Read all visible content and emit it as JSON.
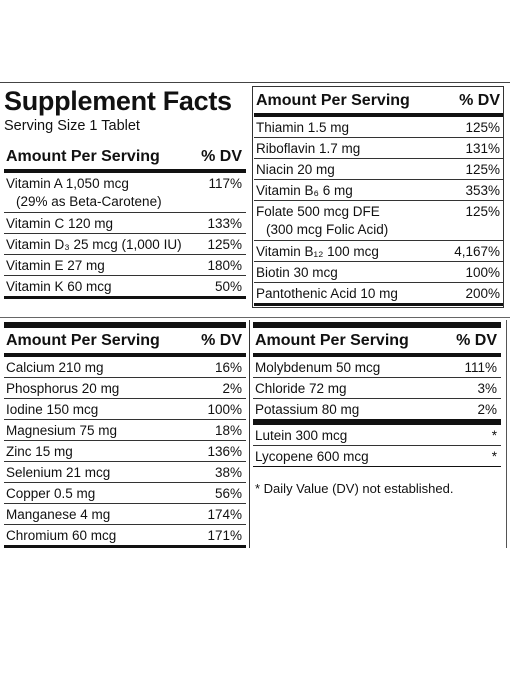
{
  "panels": [
    {
      "title": "Supplement Facts",
      "serving_size": "Serving Size 1 Tablet",
      "column_headers": [
        "Amount Per Serving",
        "% DV"
      ],
      "groups": [
        [
          {
            "nutrient": "Vitamin A 1,050 mcg",
            "note": "(29% as Beta-Carotene)",
            "dv": "117%"
          },
          {
            "nutrient": "Vitamin C 120 mg",
            "dv": "133%"
          },
          {
            "nutrient": "Vitamin D₃ 25 mcg (1,000 IU)",
            "dv": "125%"
          },
          {
            "nutrient": "Vitamin E 27 mg",
            "dv": "180%"
          },
          {
            "nutrient": "Vitamin K 60 mcg",
            "dv": "50%"
          }
        ]
      ]
    },
    {
      "column_headers": [
        "Amount Per Serving",
        "% DV"
      ],
      "groups": [
        [
          {
            "nutrient": "Thiamin 1.5 mg",
            "dv": "125%"
          },
          {
            "nutrient": "Riboflavin 1.7 mg",
            "dv": "131%"
          },
          {
            "nutrient": "Niacin 20 mg",
            "dv": "125%"
          },
          {
            "nutrient": "Vitamin B₆ 6 mg",
            "dv": "353%"
          },
          {
            "nutrient": "Folate 500 mcg DFE",
            "note": "(300 mcg Folic Acid)",
            "dv": "125%"
          },
          {
            "nutrient": "Vitamin B₁₂ 100 mcg",
            "dv": "4,167%"
          },
          {
            "nutrient": "Biotin 30 mcg",
            "dv": "100%"
          },
          {
            "nutrient": "Pantothenic Acid 10 mg",
            "dv": "200%"
          }
        ]
      ]
    },
    {
      "column_headers": [
        "Amount Per Serving",
        "% DV"
      ],
      "groups": [
        [
          {
            "nutrient": "Calcium 210 mg",
            "dv": "16%"
          },
          {
            "nutrient": "Phosphorus 20 mg",
            "dv": "2%"
          },
          {
            "nutrient": "Iodine 150 mcg",
            "dv": "100%"
          },
          {
            "nutrient": "Magnesium 75 mg",
            "dv": "18%"
          },
          {
            "nutrient": "Zinc 15 mg",
            "dv": "136%"
          },
          {
            "nutrient": "Selenium 21 mcg",
            "dv": "38%"
          },
          {
            "nutrient": "Copper 0.5 mg",
            "dv": "56%"
          },
          {
            "nutrient": "Manganese 4 mg",
            "dv": "174%"
          },
          {
            "nutrient": "Chromium 60 mcg",
            "dv": "171%"
          }
        ]
      ]
    },
    {
      "column_headers": [
        "Amount Per Serving",
        "% DV"
      ],
      "groups": [
        [
          {
            "nutrient": "Molybdenum 50 mcg",
            "dv": "111%"
          },
          {
            "nutrient": "Chloride 72 mg",
            "dv": "3%"
          },
          {
            "nutrient": "Potassium 80 mg",
            "dv": "2%"
          }
        ],
        [
          {
            "nutrient": "Lutein 300 mcg",
            "dv": "*"
          },
          {
            "nutrient": "Lycopene 600 mcg",
            "dv": "*"
          }
        ]
      ],
      "footnote": "* Daily Value (DV) not established."
    }
  ]
}
